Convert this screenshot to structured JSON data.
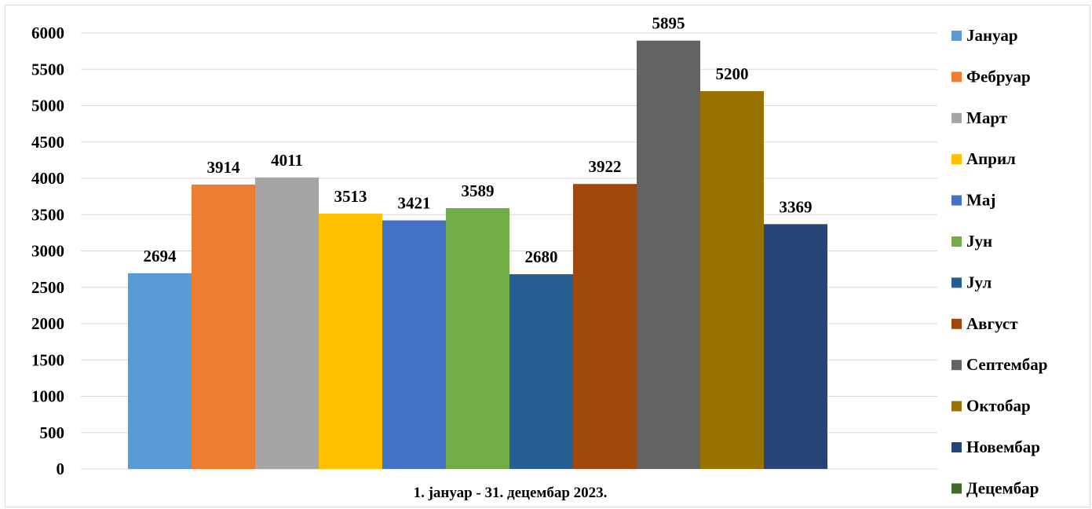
{
  "chart_data": {
    "type": "bar",
    "categories": [
      "1. јануар - 31. децембар 2023."
    ],
    "xlabel": "",
    "ylabel": "",
    "ylim": [
      0,
      6000
    ],
    "yticks": [
      0,
      500,
      1000,
      1500,
      2000,
      2500,
      3000,
      3500,
      4000,
      4500,
      5000,
      5500,
      6000
    ],
    "grid": true,
    "legend_position": "right",
    "series": [
      {
        "name": "Јануар",
        "values": [
          2694
        ],
        "color": "#5b9bd5"
      },
      {
        "name": "Фебруар",
        "values": [
          3914
        ],
        "color": "#ed7d31"
      },
      {
        "name": "Март",
        "values": [
          4011
        ],
        "color": "#a5a5a5"
      },
      {
        "name": "Април",
        "values": [
          3513
        ],
        "color": "#ffc000"
      },
      {
        "name": "Мај",
        "values": [
          3421
        ],
        "color": "#4472c4"
      },
      {
        "name": "Јун",
        "values": [
          3589
        ],
        "color": "#70ad47"
      },
      {
        "name": "Јул",
        "values": [
          2680
        ],
        "color": "#255e91"
      },
      {
        "name": "Август",
        "values": [
          3922
        ],
        "color": "#9e480e"
      },
      {
        "name": "Септембар",
        "values": [
          5895
        ],
        "color": "#636363"
      },
      {
        "name": "Октобар",
        "values": [
          5200
        ],
        "color": "#997300"
      },
      {
        "name": "Новембар",
        "values": [
          3369
        ],
        "color": "#264478"
      },
      {
        "name": "Децембар",
        "values": [
          null
        ],
        "color": "#43682b"
      }
    ]
  }
}
